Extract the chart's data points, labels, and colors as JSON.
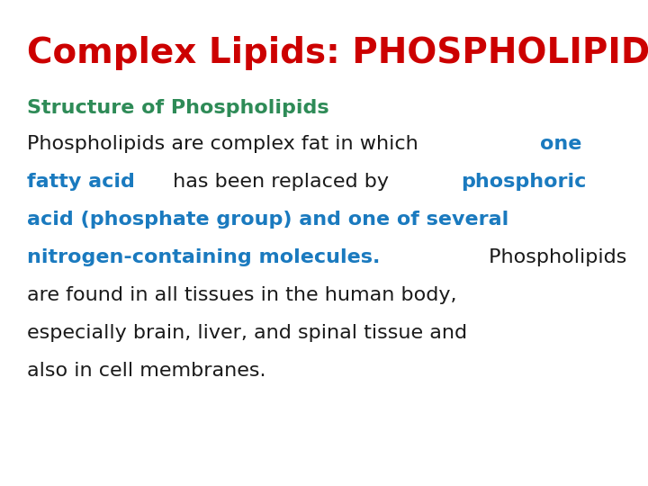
{
  "title": "Complex Lipids: PHOSPHOLIPIDS",
  "title_color": "#cc0000",
  "subtitle": "Structure of Phospholipids",
  "subtitle_color": "#2e8b57",
  "background_color": "#ffffff",
  "title_fontsize": 28,
  "subtitle_fontsize": 16,
  "body_fontsize": 16,
  "body_color": "#1a1a1a",
  "highlight_color": "#1a7abf",
  "lines": [
    [
      {
        "text": "Phospholipids are complex fat in which ",
        "color": "#1a1a1a",
        "bold": false
      },
      {
        "text": "one",
        "color": "#1a7abf",
        "bold": true
      }
    ],
    [
      {
        "text": "fatty acid",
        "color": "#1a7abf",
        "bold": true
      },
      {
        "text": " has been replaced by ",
        "color": "#1a1a1a",
        "bold": false
      },
      {
        "text": "phosphoric",
        "color": "#1a7abf",
        "bold": true
      }
    ],
    [
      {
        "text": "acid (phosphate group) and one of several",
        "color": "#1a7abf",
        "bold": true
      }
    ],
    [
      {
        "text": "nitrogen-containing molecules.",
        "color": "#1a7abf",
        "bold": true
      },
      {
        "text": " Phospholipids",
        "color": "#1a1a1a",
        "bold": false
      }
    ],
    [
      {
        "text": "are found in all tissues in the human body,",
        "color": "#1a1a1a",
        "bold": false
      }
    ],
    [
      {
        "text": "especially brain, liver, and spinal tissue and",
        "color": "#1a1a1a",
        "bold": false
      }
    ],
    [
      {
        "text": "also in cell membranes.",
        "color": "#1a1a1a",
        "bold": false
      }
    ]
  ]
}
